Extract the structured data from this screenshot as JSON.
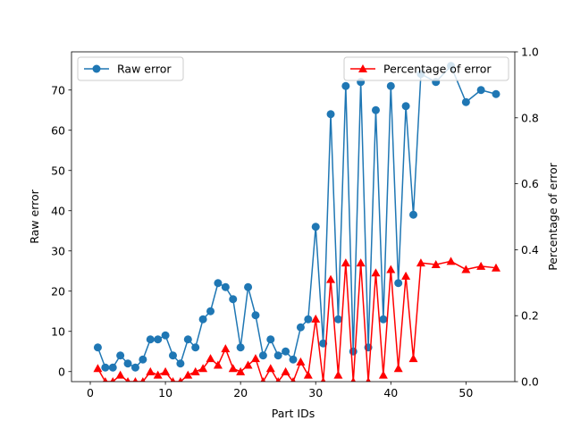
{
  "chart_data": {
    "type": "line",
    "xlabel": "Part IDs",
    "x_ticks": [
      0,
      10,
      20,
      30,
      40,
      50
    ],
    "xlim": [
      -2.5,
      56.5
    ],
    "left_axis": {
      "label": "Raw error",
      "ylim": [
        -2.5,
        79.5
      ],
      "ticks": [
        0,
        10,
        20,
        30,
        40,
        50,
        60,
        70
      ]
    },
    "right_axis": {
      "label": "Percentage of error",
      "ylim": [
        0.0,
        1.0
      ],
      "ticks": [
        "0.0",
        "0.2",
        "0.4",
        "0.6",
        "0.8",
        "1.0"
      ]
    },
    "series": [
      {
        "name": "Raw error",
        "axis": "left",
        "color": "#1f77b4",
        "marker": "circle",
        "x": [
          1,
          2,
          3,
          4,
          5,
          6,
          7,
          8,
          9,
          10,
          11,
          12,
          13,
          14,
          15,
          16,
          17,
          18,
          19,
          20,
          21,
          22,
          23,
          24,
          25,
          26,
          27,
          28,
          29,
          30,
          31,
          32,
          33,
          34,
          35,
          36,
          37,
          38,
          39,
          40,
          41,
          42,
          43,
          44,
          46,
          48,
          50,
          52,
          54
        ],
        "y": [
          6,
          1,
          1,
          4,
          2,
          1,
          3,
          8,
          8,
          9,
          4,
          2,
          8,
          6,
          13,
          15,
          22,
          21,
          18,
          6,
          21,
          14,
          4,
          8,
          4,
          5,
          3,
          11,
          13,
          36,
          7,
          64,
          13,
          71,
          5,
          72,
          6,
          65,
          13,
          71,
          22,
          66,
          39,
          74,
          72,
          76,
          67,
          70,
          69
        ]
      },
      {
        "name": "Percentage of error",
        "axis": "right",
        "color": "#ff0000",
        "marker": "triangle",
        "x": [
          1,
          2,
          3,
          4,
          5,
          6,
          7,
          8,
          9,
          10,
          11,
          12,
          13,
          14,
          15,
          16,
          17,
          18,
          19,
          20,
          21,
          22,
          23,
          24,
          25,
          26,
          27,
          28,
          29,
          30,
          31,
          32,
          33,
          34,
          35,
          36,
          37,
          38,
          39,
          40,
          41,
          42,
          43,
          44,
          46,
          48,
          50,
          52,
          54
        ],
        "y": [
          0.04,
          0.0,
          0.0,
          0.02,
          0.0,
          0.0,
          0.0,
          0.03,
          0.02,
          0.03,
          0.0,
          0.0,
          0.02,
          0.03,
          0.04,
          0.07,
          0.05,
          0.1,
          0.04,
          0.03,
          0.05,
          0.07,
          0.0,
          0.04,
          0.0,
          0.03,
          0.0,
          0.06,
          0.02,
          0.19,
          0.0,
          0.31,
          0.02,
          0.36,
          0.0,
          0.36,
          0.0,
          0.33,
          0.02,
          0.34,
          0.04,
          0.32,
          0.07,
          0.36,
          0.355,
          0.365,
          0.34,
          0.35,
          0.345
        ]
      }
    ],
    "legends": [
      {
        "label": "Raw error",
        "placement": "upper-left"
      },
      {
        "label": "Percentage of error",
        "placement": "upper-right"
      }
    ]
  }
}
